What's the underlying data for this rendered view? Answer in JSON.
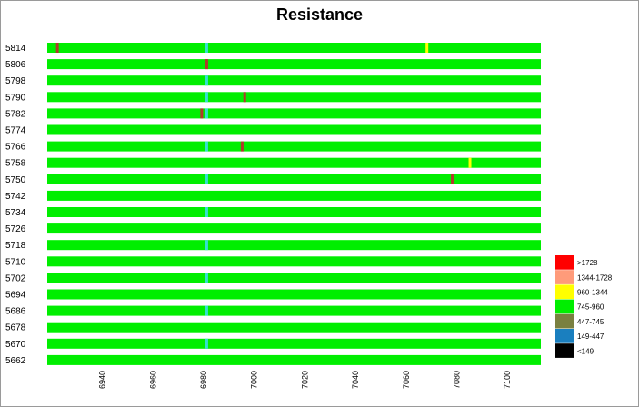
{
  "chart_data": {
    "type": "heatmap",
    "title": "Resistance",
    "xlabel": "",
    "ylabel": "",
    "xlim": [
      6918,
      7113
    ],
    "x_ticks": [
      "6940",
      "6960",
      "6980",
      "7000",
      "7020",
      "7040",
      "7060",
      "7080",
      "7100"
    ],
    "rows": [
      "5814",
      "5806",
      "5798",
      "5790",
      "5782",
      "5774",
      "5766",
      "5758",
      "5750",
      "5742",
      "5734",
      "5726",
      "5718",
      "5710",
      "5702",
      "5694",
      "5686",
      "5678",
      "5670",
      "5662"
    ],
    "base_class": "745-960",
    "marks": [
      {
        "row": "5814",
        "x": 6922,
        "class": "brown"
      },
      {
        "row": "5814",
        "x": 6981,
        "class": "cyan"
      },
      {
        "row": "5814",
        "x": 7068,
        "class": "960-1344"
      },
      {
        "row": "5806",
        "x": 6981,
        "class": "brown"
      },
      {
        "row": "5798",
        "x": 6981,
        "class": "cyan"
      },
      {
        "row": "5790",
        "x": 6981,
        "class": "cyan"
      },
      {
        "row": "5790",
        "x": 6996,
        "class": "brown"
      },
      {
        "row": "5782",
        "x": 6979,
        "class": "brown"
      },
      {
        "row": "5782",
        "x": 6981,
        "class": "cyan"
      },
      {
        "row": "5766",
        "x": 6981,
        "class": "cyan"
      },
      {
        "row": "5766",
        "x": 6995,
        "class": "brown"
      },
      {
        "row": "5758",
        "x": 7085,
        "class": "960-1344"
      },
      {
        "row": "5750",
        "x": 6981,
        "class": "cyan"
      },
      {
        "row": "5750",
        "x": 7078,
        "class": "brown"
      },
      {
        "row": "5734",
        "x": 6981,
        "class": "cyan"
      },
      {
        "row": "5718",
        "x": 6981,
        "class": "cyan"
      },
      {
        "row": "5702",
        "x": 6981,
        "class": "cyan"
      },
      {
        "row": "5686",
        "x": 6981,
        "class": "cyan"
      },
      {
        "row": "5670",
        "x": 6981,
        "class": "cyan"
      }
    ],
    "legend": [
      {
        "label": ">1728",
        "color": "#ff0000"
      },
      {
        "label": "1344-1728",
        "color": "#ff9b7a"
      },
      {
        "label": "960-1344",
        "color": "#ffff00"
      },
      {
        "label": "745-960",
        "color": "#00ee00"
      },
      {
        "label": "447-745",
        "color": "#7a8040"
      },
      {
        "label": "149-447",
        "color": "#1a7fbf"
      },
      {
        "label": "<149",
        "color": "#000000"
      }
    ],
    "mark_colors": {
      "brown": "#b03a2a",
      "cyan": "#33e0d0",
      "960-1344": "#ffff00"
    },
    "legend_placement": "bottom-right",
    "grid": false
  }
}
